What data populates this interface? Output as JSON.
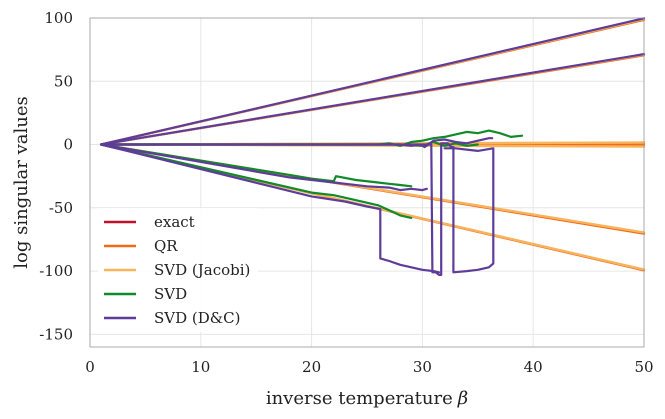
{
  "chart_data": {
    "type": "line",
    "title": "",
    "xlabel": "inverse temperature",
    "xlabel_symbol": "β",
    "ylabel": "log singular values",
    "xlim": [
      0,
      50
    ],
    "ylim": [
      -160,
      100
    ],
    "xticks": [
      0,
      10,
      20,
      30,
      40,
      50
    ],
    "yticks": [
      -150,
      -100,
      -50,
      0,
      50,
      100
    ],
    "xtick_labels": [
      "0",
      "10",
      "20",
      "30",
      "40",
      "50"
    ],
    "ytick_labels": [
      "-150",
      "-100",
      "-50",
      "0",
      "50",
      "100"
    ],
    "grid": true,
    "legend_position": "lower-left",
    "series": [
      {
        "name": "exact",
        "color": "#c0102a",
        "width": 2.2,
        "lines": [
          [
            [
              1,
              0
            ],
            [
              50,
              99
            ]
          ],
          [
            [
              1,
              0
            ],
            [
              50,
              71
            ]
          ],
          [
            [
              1,
              0
            ],
            [
              50,
              1
            ]
          ],
          [
            [
              1,
              0
            ],
            [
              50,
              -1
            ]
          ],
          [
            [
              1,
              0
            ],
            [
              50,
              -70
            ]
          ],
          [
            [
              1,
              0
            ],
            [
              50,
              -99
            ]
          ]
        ]
      },
      {
        "name": "QR",
        "color": "#f06a1a",
        "width": 2.2,
        "lines": [
          [
            [
              1,
              0
            ],
            [
              50,
              98.5
            ]
          ],
          [
            [
              1,
              0
            ],
            [
              50,
              70.5
            ]
          ],
          [
            [
              1,
              0
            ],
            [
              50,
              0.6
            ]
          ],
          [
            [
              1,
              0
            ],
            [
              50,
              -0.6
            ]
          ],
          [
            [
              1,
              0
            ],
            [
              50,
              -70.5
            ]
          ],
          [
            [
              1,
              0
            ],
            [
              50,
              -99.5
            ]
          ]
        ]
      },
      {
        "name": "SVD (Jacobi)",
        "color": "#f7b45c",
        "width": 2.4,
        "lines": [
          [
            [
              1,
              0
            ],
            [
              50,
              99.2
            ]
          ],
          [
            [
              1,
              0
            ],
            [
              50,
              71.2
            ]
          ],
          [
            [
              1,
              0
            ],
            [
              50,
              1.6
            ]
          ],
          [
            [
              1,
              0
            ],
            [
              50,
              -1.6
            ]
          ],
          [
            [
              1,
              0
            ],
            [
              50,
              -69.5
            ]
          ],
          [
            [
              1,
              0
            ],
            [
              50,
              -98.8
            ]
          ]
        ]
      },
      {
        "name": "SVD",
        "color": "#118a2a",
        "width": 2.2,
        "lines": [
          [
            [
              1,
              0
            ],
            [
              26,
              0
            ],
            [
              27,
              1
            ],
            [
              28,
              -1
            ],
            [
              29,
              2
            ],
            [
              30,
              3
            ],
            [
              31,
              5
            ],
            [
              32,
              6
            ],
            [
              33,
              8
            ],
            [
              34,
              10
            ],
            [
              35,
              9
            ],
            [
              36,
              11
            ],
            [
              37,
              9
            ],
            [
              38,
              6
            ],
            [
              39,
              7
            ]
          ],
          [
            [
              1,
              0
            ],
            [
              26,
              0
            ],
            [
              28,
              0
            ],
            [
              30,
              -1
            ],
            [
              31,
              2
            ],
            [
              32,
              -1
            ],
            [
              33,
              1
            ],
            [
              34,
              -1
            ],
            [
              35,
              0
            ]
          ],
          [
            [
              1,
              0
            ],
            [
              18,
              -24
            ],
            [
              20,
              -27
            ],
            [
              22,
              -29
            ],
            [
              22.2,
              -25
            ],
            [
              24,
              -28
            ],
            [
              26,
              -30
            ],
            [
              27,
              -31
            ],
            [
              28,
              -32
            ],
            [
              29,
              -33
            ]
          ],
          [
            [
              1,
              0
            ],
            [
              20,
              -38
            ],
            [
              22,
              -40
            ],
            [
              24,
              -44
            ],
            [
              26,
              -48
            ],
            [
              27,
              -52
            ],
            [
              28,
              -56
            ],
            [
              29,
              -58
            ]
          ]
        ]
      },
      {
        "name": "SVD (D&C)",
        "color": "#5e3c99",
        "width": 2.2,
        "lines": [
          [
            [
              1,
              0
            ],
            [
              50,
              99.8
            ]
          ],
          [
            [
              1,
              0
            ],
            [
              50,
              71.5
            ]
          ],
          [
            [
              1,
              0
            ],
            [
              28,
              0
            ],
            [
              29,
              -1
            ],
            [
              29.8,
              0
            ],
            [
              30.2,
              -2
            ],
            [
              31,
              3
            ],
            [
              32,
              4
            ],
            [
              33,
              2
            ],
            [
              34,
              1
            ],
            [
              35,
              3
            ],
            [
              36,
              5
            ],
            [
              36.3,
              5
            ]
          ],
          [
            [
              1,
              0
            ],
            [
              30.8,
              0
            ],
            [
              30.9,
              -101
            ],
            [
              31.2,
              -101
            ],
            [
              31.5,
              -103
            ],
            [
              31.7,
              -103
            ],
            [
              31.7,
              1
            ],
            [
              32.3,
              1
            ],
            [
              32.6,
              -2
            ],
            [
              32.8,
              -2
            ],
            [
              32.8,
              -101
            ],
            [
              34,
              -100
            ],
            [
              35,
              -99
            ],
            [
              36,
              -97
            ],
            [
              36.4,
              -94
            ],
            [
              36.4,
              -3
            ],
            [
              35,
              -5
            ],
            [
              34,
              -4
            ],
            [
              33,
              -3
            ],
            [
              32,
              -3
            ]
          ],
          [
            [
              1,
              0
            ],
            [
              18,
              -26
            ],
            [
              22,
              -30
            ],
            [
              25,
              -33
            ],
            [
              27,
              -34
            ],
            [
              28,
              -36
            ],
            [
              29,
              -35
            ],
            [
              30,
              -36
            ],
            [
              30.4,
              -35
            ]
          ],
          [
            [
              1,
              0
            ],
            [
              20,
              -41
            ],
            [
              23,
              -45
            ],
            [
              25,
              -49
            ],
            [
              26.2,
              -51
            ],
            [
              26.2,
              -90
            ],
            [
              27,
              -92
            ],
            [
              28,
              -95
            ],
            [
              29,
              -97
            ],
            [
              30,
              -99
            ],
            [
              31,
              -100
            ],
            [
              31.5,
              -101
            ]
          ]
        ]
      }
    ]
  }
}
